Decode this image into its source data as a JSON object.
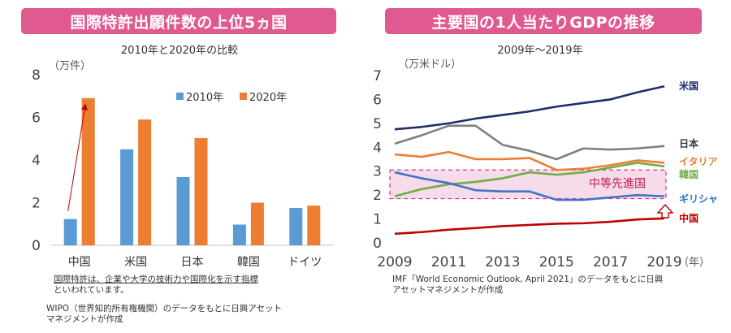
{
  "left": {
    "banner": "国際特許出願件数の上位5ヵ国",
    "subtitle": "2010年と2020年の比較",
    "unit": "（万件）",
    "note_underlined": "国際特許は、企業や大学の技術力や国際化を示す指標",
    "note_rest": "といわれています。",
    "source_line1": "WIPO（世界知的所有権機関）のデータをもとに日興アセット",
    "source_line2": "マネジメントが作成"
  },
  "right": {
    "banner": "主要国の1人当たりGDPの推移",
    "subtitle": "2009年～2019年",
    "unit": "（万米ドル）",
    "x_unit": "（年）",
    "band_label": "中等先進国",
    "source_line1": "IMF「World Economic Outlook, April 2021」のデータをもとに日興",
    "source_line2": "アセットマネジメントが作成"
  },
  "chart_data": [
    {
      "type": "bar",
      "title": "国際特許出願件数の上位5ヵ国",
      "subtitle": "2010年と2020年の比較",
      "ylabel": "（万件）",
      "ylim": [
        0,
        8
      ],
      "yticks": [
        0,
        2,
        4,
        6,
        8
      ],
      "categories": [
        "中国",
        "米国",
        "日本",
        "韓国",
        "ドイツ"
      ],
      "series": [
        {
          "name": "2010年",
          "color": "#5b9bd5",
          "values": [
            1.23,
            4.5,
            3.2,
            0.97,
            1.75
          ]
        },
        {
          "name": "2020年",
          "color": "#ed7d31",
          "values": [
            6.9,
            5.9,
            5.03,
            2.0,
            1.86
          ]
        }
      ],
      "legend": "top-right",
      "annotation": "arrow from 中国 2010 to 中国 2020"
    },
    {
      "type": "line",
      "title": "主要国の1人当たりGDPの推移",
      "subtitle": "2009年～2019年",
      "ylabel": "（万米ドル）",
      "xlabel": "（年）",
      "ylim": [
        0,
        7
      ],
      "yticks": [
        0,
        1,
        2,
        3,
        4,
        5,
        6,
        7
      ],
      "xlim": [
        2009,
        2019
      ],
      "xticks": [
        2009,
        2011,
        2013,
        2015,
        2017,
        2019
      ],
      "x": [
        2009,
        2010,
        2011,
        2012,
        2013,
        2014,
        2015,
        2016,
        2017,
        2018,
        2019
      ],
      "series": [
        {
          "name": "米国",
          "color": "#1f2d6b",
          "label_color": "#1f2d6b",
          "values": [
            4.75,
            4.85,
            5.0,
            5.2,
            5.35,
            5.5,
            5.7,
            5.85,
            6.0,
            6.3,
            6.55
          ]
        },
        {
          "name": "日本",
          "color": "#7f7f7f",
          "label_color": "#333333",
          "values": [
            4.15,
            4.5,
            4.9,
            4.9,
            4.1,
            3.85,
            3.5,
            3.95,
            3.9,
            3.95,
            4.05
          ]
        },
        {
          "name": "イタリア",
          "color": "#ed7d31",
          "label_color": "#ed7d31",
          "values": [
            3.7,
            3.6,
            3.8,
            3.5,
            3.5,
            3.55,
            3.05,
            3.1,
            3.25,
            3.45,
            3.35
          ]
        },
        {
          "name": "韓国",
          "color": "#70ad47",
          "label_color": "#70ad47",
          "values": [
            1.95,
            2.25,
            2.45,
            2.55,
            2.7,
            2.95,
            2.85,
            2.95,
            3.15,
            3.35,
            3.2
          ]
        },
        {
          "name": "ギリシャ",
          "color": "#4472c4",
          "label_color": "#2f6fd0",
          "values": [
            2.95,
            2.7,
            2.5,
            2.2,
            2.15,
            2.15,
            1.8,
            1.8,
            1.9,
            2.0,
            1.95
          ]
        },
        {
          "name": "中国",
          "color": "#c00000",
          "label_color": "#c00000",
          "values": [
            0.38,
            0.45,
            0.55,
            0.62,
            0.7,
            0.75,
            0.8,
            0.82,
            0.88,
            0.98,
            1.02
          ]
        }
      ],
      "band": {
        "label": "中等先進国",
        "from": 1.85,
        "to": 3.05
      }
    }
  ]
}
